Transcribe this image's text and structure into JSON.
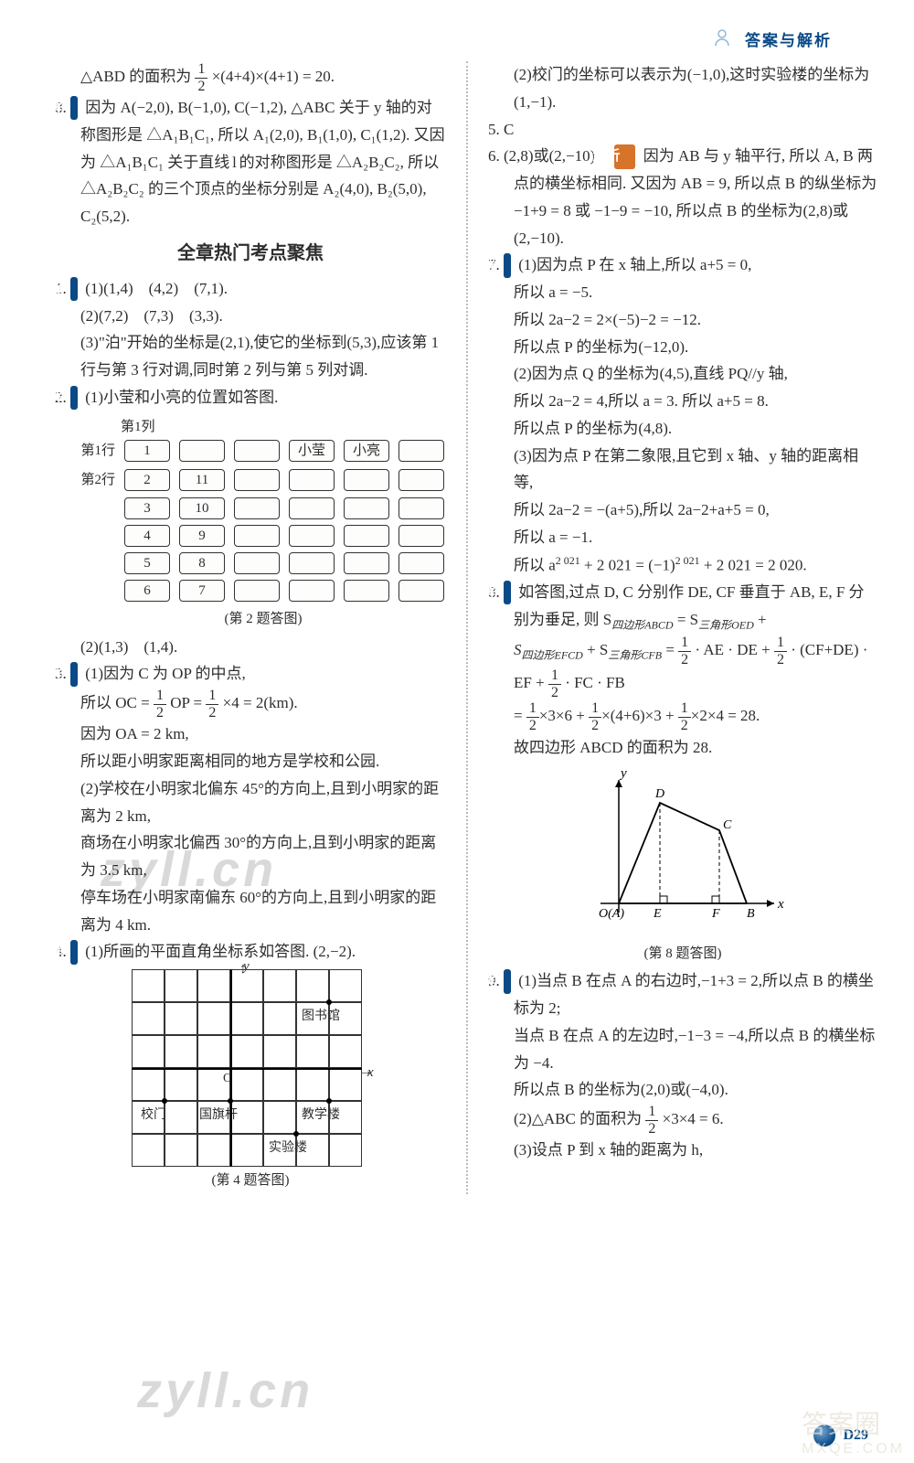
{
  "header": {
    "title": "答案与解析"
  },
  "watermarks": {
    "w1": "zyll.cn",
    "w2": "zyll.cn",
    "corner1": "答案圈",
    "corner2": "MXQE.COM"
  },
  "badges": {
    "jie": "解",
    "jiexi": "解析"
  },
  "left": {
    "p_abd": "△ABD 的面积为",
    "p_abd_tail": "×(4+4)×(4+1) = 20.",
    "q8a": "因为 A(−2,0), B(−1,0), C(−1,2), △ABC 关于 y 轴的对称图形是 △A₁B₁C₁, 所以 A₁(2,0), B₁(1,0), C₁(1,2). 又因为 △A₁B₁C₁ 关于直线 l 的对称图形是 △A₂B₂C₂, 所以 △A₂B₂C₂ 的三个顶点的坐标分别是 A₂(4,0), B₂(5,0), C₂(5,2).",
    "section": "全章热门考点聚焦",
    "q1a": "(1)(1,4)　(4,2)　(7,1).",
    "q1b": "(2)(7,2)　(7,3)　(3,3).",
    "q1c": "(3)\"泊\"开始的坐标是(2,1),使它的坐标到(5,3),应该第 1 行与第 3 行对调,同时第 2 列与第 5 列对调.",
    "q2a": "(1)小莹和小亮的位置如答图.",
    "diag2": {
      "col1": "第1列",
      "rows": [
        {
          "rl": "第1行",
          "cells": [
            "1",
            "",
            "",
            "小莹",
            "小亮",
            ""
          ]
        },
        {
          "rl": "第2行",
          "cells": [
            "2",
            "11",
            "",
            "",
            "",
            ""
          ]
        },
        {
          "rl": "",
          "cells": [
            "3",
            "10",
            "",
            "",
            "",
            ""
          ]
        },
        {
          "rl": "",
          "cells": [
            "4",
            "9",
            "",
            "",
            "",
            ""
          ]
        },
        {
          "rl": "",
          "cells": [
            "5",
            "8",
            "",
            "",
            "",
            ""
          ]
        },
        {
          "rl": "",
          "cells": [
            "6",
            "7",
            "",
            "",
            "",
            ""
          ]
        }
      ],
      "caption": "(第 2 题答图)"
    },
    "q2b": "(2)(1,3)　(1,4).",
    "q3a": "(1)因为 C 为 OP 的中点,",
    "q3b_pre": "所以 OC =",
    "q3b_mid": "OP =",
    "q3b_tail": "×4 = 2(km).",
    "q3c": "因为 OA = 2 km,",
    "q3d": "所以距小明家距离相同的地方是学校和公园.",
    "q3e": "(2)学校在小明家北偏东 45°的方向上,且到小明家的距离为 2 km,",
    "q3f": "商场在小明家北偏西 30°的方向上,且到小明家的距离为 3.5 km,",
    "q3g": "停车场在小明家南偏东 60°的方向上,且到小明家的距离为 4 km.",
    "q4a": "(1)所画的平面直角坐标系如答图. (2,−2).",
    "diag4": {
      "labels": {
        "library": "图书馆",
        "gate": "校门",
        "flag": "国旗杆",
        "teach": "教学楼",
        "lab": "实验楼",
        "O": "O",
        "x": "x",
        "y": "y"
      },
      "caption": "(第 4 题答图)"
    }
  },
  "right": {
    "q4b": "(2)校门的坐标可以表示为(−1,0),这时实验楼的坐标为(1,−1).",
    "q5": "C",
    "q6a": "(2,8)或(2,−10)　",
    "q6b": "因为 AB 与 y 轴平行, 所以 A, B 两点的横坐标相同. 又因为 AB = 9, 所以点 B 的纵坐标为 −1+9 = 8 或 −1−9 = −10, 所以点 B 的坐标为(2,8)或(2,−10).",
    "q7a": "(1)因为点 P 在 x 轴上,所以 a+5 = 0,",
    "q7b": "所以 a = −5.",
    "q7c": "所以 2a−2 = 2×(−5)−2 = −12.",
    "q7d": "所以点 P 的坐标为(−12,0).",
    "q7e": "(2)因为点 Q 的坐标为(4,5),直线 PQ//y 轴,",
    "q7f": "所以 2a−2 = 4,所以 a = 3. 所以 a+5 = 8.",
    "q7g": "所以点 P 的坐标为(4,8).",
    "q7h": "(3)因为点 P 在第二象限,且它到 x 轴、y 轴的距离相等,",
    "q7i": "所以 2a−2 = −(a+5),所以 2a−2+a+5 = 0,",
    "q7j": "所以 a = −1.",
    "q7k_pre": "所以 a",
    "q7k_exp": "2 021",
    "q7k_mid": "+ 2 021 = (−1)",
    "q7k_tail": "+ 2 021 = 2 020.",
    "q8a": "如答图,过点 D, C 分别作 DE, CF 垂直于 AB, E, F 分别为垂足, 则 S",
    "q8a_idx1": "四边形ABCD",
    "q8a_mid1": " = S",
    "q8a_idx2": "三角形OED",
    "q8a_tail1": " + ",
    "q8b_pre": "S",
    "q8b_idx1": "四边形EFCD",
    "q8b_mid": " + S",
    "q8b_idx2": "三角形CFB",
    "q8b_eq": " = ",
    "q8b_t1": " · AE · DE + ",
    "q8b_t2": " · (CF+DE) · ",
    "q8c_pre": "EF + ",
    "q8c_mid": " · FC · FB",
    "q8d_eq": "= ",
    "q8d_t1": "×3×6 + ",
    "q8d_t2": "×(4+6)×3 + ",
    "q8d_t3": "×2×4 = 28.",
    "q8e": "故四边形 ABCD 的面积为 28.",
    "diag8": {
      "caption": "(第 8 题答图)",
      "labels": {
        "y": "y",
        "x": "x",
        "O": "O(A)",
        "E": "E",
        "F": "F",
        "B": "B",
        "C": "C",
        "D": "D"
      },
      "colors": {
        "axis": "#000000"
      }
    },
    "q9a": "(1)当点 B 在点 A 的右边时,−1+3 = 2,所以点 B 的横坐标为 2;",
    "q9b": "当点 B 在点 A 的左边时,−1−3 = −4,所以点 B 的横坐标为 −4.",
    "q9c": "所以点 B 的坐标为(2,0)或(−4,0).",
    "q9d_pre": "(2)△ABC 的面积为",
    "q9d_tail": "×3×4 = 6.",
    "q9e": "(3)设点 P 到 x 轴的距离为 h,"
  },
  "footer": {
    "page": "D29"
  }
}
